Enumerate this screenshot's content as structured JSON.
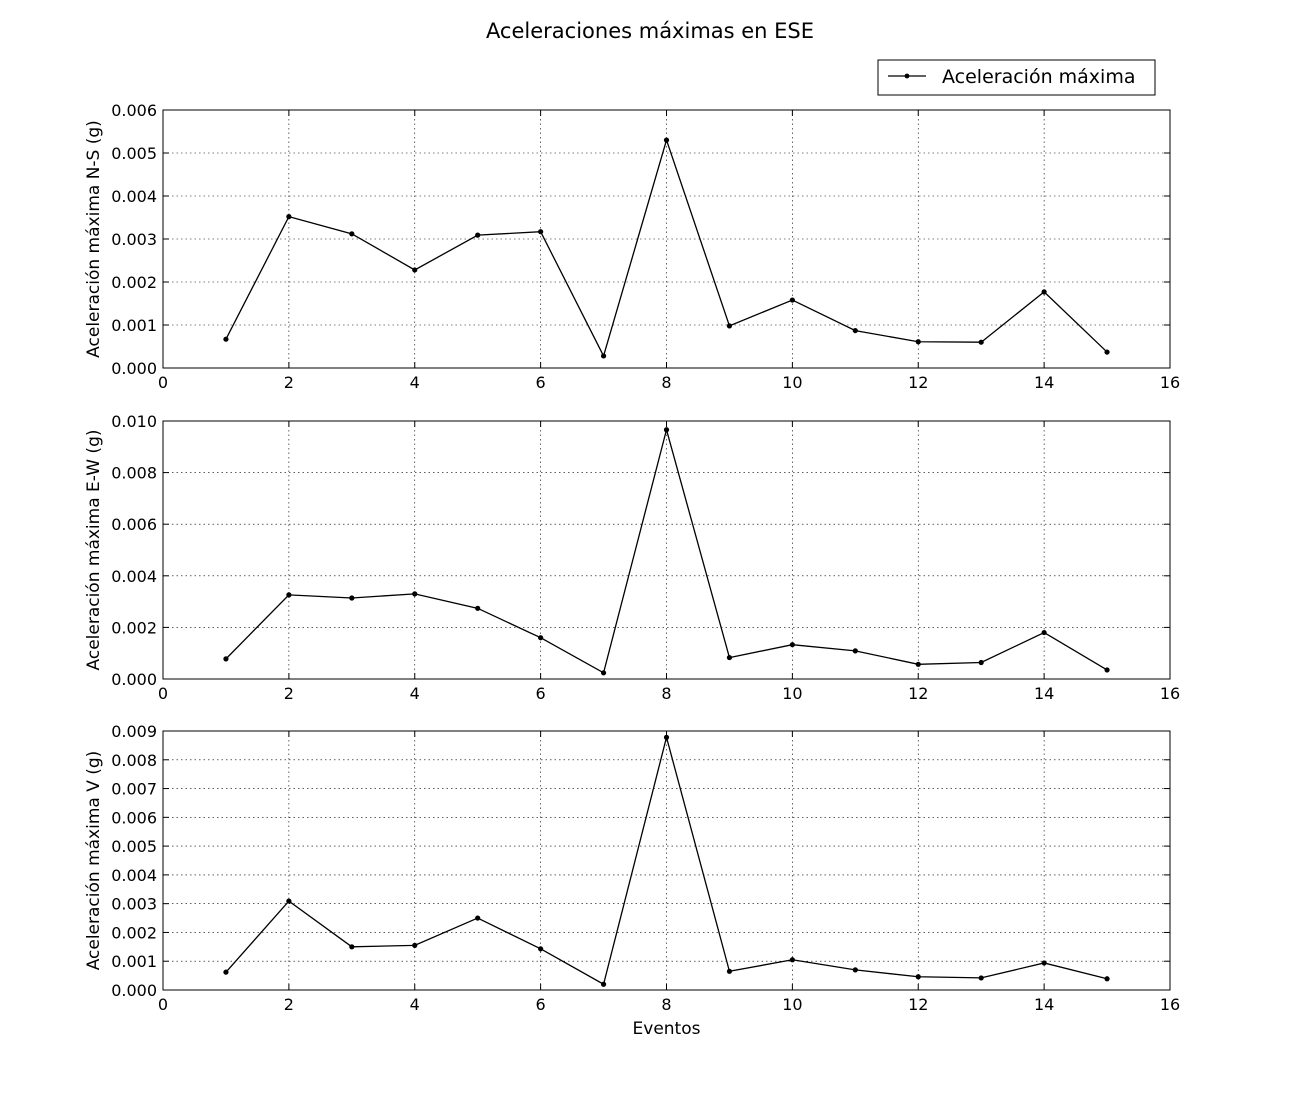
{
  "title": "Aceleraciones máximas en ESE",
  "legend": {
    "label": "Aceleración máxima",
    "placement": "top-right"
  },
  "chart_data": [
    {
      "type": "line",
      "ylabel": "Aceleración máxima N-S (g)",
      "xlabel": "",
      "xlim": [
        0,
        16
      ],
      "ylim": [
        0,
        0.006
      ],
      "xticks": [
        "0",
        "2",
        "4",
        "6",
        "8",
        "10",
        "12",
        "14",
        "16"
      ],
      "yticks": [
        "0.000",
        "0.001",
        "0.002",
        "0.003",
        "0.004",
        "0.005",
        "0.006"
      ],
      "grid": true,
      "series": [
        {
          "name": "Aceleración máxima",
          "x": [
            1,
            2,
            3,
            4,
            5,
            6,
            7,
            8,
            9,
            10,
            11,
            12,
            13,
            14,
            15
          ],
          "y": [
            0.00067,
            0.00352,
            0.00312,
            0.00228,
            0.00309,
            0.00317,
            0.00028,
            0.0053,
            0.00098,
            0.00158,
            0.00087,
            0.00061,
            0.0006,
            0.00177,
            0.00037
          ]
        }
      ]
    },
    {
      "type": "line",
      "ylabel": "Aceleración máxima E-W (g)",
      "xlabel": "",
      "xlim": [
        0,
        16
      ],
      "ylim": [
        0,
        0.01
      ],
      "xticks": [
        "0",
        "2",
        "4",
        "6",
        "8",
        "10",
        "12",
        "14",
        "16"
      ],
      "yticks": [
        "0.000",
        "0.002",
        "0.004",
        "0.006",
        "0.008",
        "0.010"
      ],
      "grid": true,
      "series": [
        {
          "name": "Aceleración máxima",
          "x": [
            1,
            2,
            3,
            4,
            5,
            6,
            7,
            8,
            9,
            10,
            11,
            12,
            13,
            14,
            15
          ],
          "y": [
            0.00078,
            0.00326,
            0.00314,
            0.0033,
            0.00274,
            0.0016,
            0.00024,
            0.00966,
            0.00083,
            0.00133,
            0.00109,
            0.00057,
            0.00064,
            0.0018,
            0.00035
          ]
        }
      ]
    },
    {
      "type": "line",
      "ylabel": "Aceleración máxima V (g)",
      "xlabel": "Eventos",
      "xlim": [
        0,
        16
      ],
      "ylim": [
        0,
        0.009
      ],
      "xticks": [
        "0",
        "2",
        "4",
        "6",
        "8",
        "10",
        "12",
        "14",
        "16"
      ],
      "yticks": [
        "0.000",
        "0.001",
        "0.002",
        "0.003",
        "0.004",
        "0.005",
        "0.006",
        "0.007",
        "0.008",
        "0.009"
      ],
      "grid": true,
      "series": [
        {
          "name": "Aceleración máxima",
          "x": [
            1,
            2,
            3,
            4,
            5,
            6,
            7,
            8,
            9,
            10,
            11,
            12,
            13,
            14,
            15
          ],
          "y": [
            0.00062,
            0.00309,
            0.0015,
            0.00155,
            0.0025,
            0.00143,
            0.0002,
            0.00878,
            0.00065,
            0.00105,
            0.0007,
            0.00046,
            0.00042,
            0.00094,
            0.00039
          ]
        }
      ]
    }
  ]
}
